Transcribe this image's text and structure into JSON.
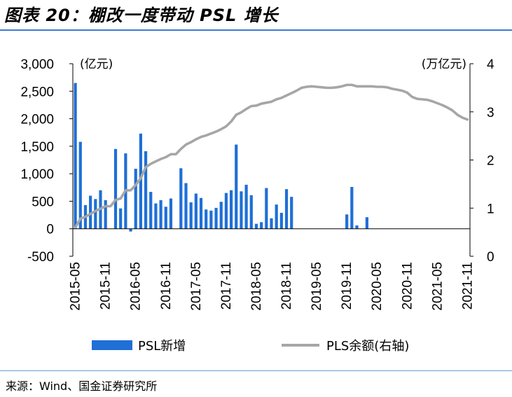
{
  "title": "图表 20：棚改一度带动 PSL 增长",
  "source": "来源：Wind、国金证券研究所",
  "chart_data": {
    "type": "bar+line",
    "categories": [
      "2015-05",
      "2015-06",
      "2015-07",
      "2015-08",
      "2015-09",
      "2015-10",
      "2015-11",
      "2015-12",
      "2016-01",
      "2016-02",
      "2016-03",
      "2016-04",
      "2016-05",
      "2016-06",
      "2016-07",
      "2016-08",
      "2016-09",
      "2016-10",
      "2016-11",
      "2016-12",
      "2017-01",
      "2017-02",
      "2017-03",
      "2017-04",
      "2017-05",
      "2017-06",
      "2017-07",
      "2017-08",
      "2017-09",
      "2017-10",
      "2017-11",
      "2017-12",
      "2018-01",
      "2018-02",
      "2018-03",
      "2018-04",
      "2018-05",
      "2018-06",
      "2018-07",
      "2018-08",
      "2018-09",
      "2018-10",
      "2018-11",
      "2018-12",
      "2019-01",
      "2019-02",
      "2019-03",
      "2019-04",
      "2019-05",
      "2019-06",
      "2019-07",
      "2019-08",
      "2019-09",
      "2019-10",
      "2019-11",
      "2019-12",
      "2020-01",
      "2020-02",
      "2020-03",
      "2020-04",
      "2020-05",
      "2020-06",
      "2020-07",
      "2020-08",
      "2020-09",
      "2020-10",
      "2020-11",
      "2020-12",
      "2021-01",
      "2021-02",
      "2021-03",
      "2021-04",
      "2021-05",
      "2021-06",
      "2021-07",
      "2021-08",
      "2021-09",
      "2021-10",
      "2021-11"
    ],
    "x_tick_labels": [
      "2015-05",
      "2015-11",
      "2016-05",
      "2016-11",
      "2017-05",
      "2017-11",
      "2018-05",
      "2018-11",
      "2019-05",
      "2019-11",
      "2020-05",
      "2020-11",
      "2021-05",
      "2021-11"
    ],
    "left_axis": {
      "unit": "(亿元)",
      "ylim": [
        -500,
        3000
      ],
      "ticks": [
        "3,000",
        "2,500",
        "2,000",
        "1,500",
        "1,000",
        "500",
        "0",
        "-500"
      ]
    },
    "right_axis": {
      "unit": "(万亿元)",
      "ylim": [
        0,
        4
      ],
      "ticks": [
        "4",
        "3",
        "2",
        "1",
        "0"
      ]
    },
    "series": [
      {
        "name": "PSL新增",
        "type": "bar",
        "axis": "left",
        "color": "#1f6fd6",
        "values": [
          2650,
          1580,
          430,
          600,
          540,
          700,
          520,
          0,
          1450,
          370,
          1370,
          -50,
          1090,
          1730,
          1410,
          670,
          460,
          520,
          400,
          550,
          0,
          1100,
          830,
          480,
          640,
          560,
          350,
          330,
          380,
          490,
          650,
          700,
          1530,
          680,
          800,
          610,
          90,
          120,
          740,
          190,
          440,
          290,
          720,
          580,
          0,
          0,
          0,
          0,
          0,
          0,
          0,
          0,
          0,
          0,
          260,
          760,
          60,
          0,
          210,
          0,
          0,
          0,
          0,
          0,
          0,
          0,
          0,
          0,
          0,
          0,
          0,
          0,
          0,
          0,
          0,
          0,
          0,
          0,
          0
        ]
      },
      {
        "name": "PLS余额(右轴)",
        "type": "line",
        "axis": "right",
        "color": "#a6a6a6",
        "values": [
          0.6,
          0.78,
          0.82,
          0.88,
          0.94,
          0.99,
          1.04,
          1.04,
          1.17,
          1.2,
          1.37,
          1.37,
          1.48,
          1.62,
          1.85,
          1.92,
          1.97,
          2.02,
          2.06,
          2.12,
          2.12,
          2.23,
          2.32,
          2.37,
          2.43,
          2.48,
          2.51,
          2.55,
          2.59,
          2.64,
          2.7,
          2.8,
          2.94,
          2.99,
          3.06,
          3.12,
          3.13,
          3.17,
          3.19,
          3.21,
          3.26,
          3.29,
          3.34,
          3.39,
          3.44,
          3.5,
          3.52,
          3.53,
          3.52,
          3.51,
          3.5,
          3.5,
          3.51,
          3.53,
          3.56,
          3.56,
          3.53,
          3.53,
          3.53,
          3.53,
          3.52,
          3.52,
          3.51,
          3.48,
          3.46,
          3.44,
          3.4,
          3.31,
          3.27,
          3.26,
          3.25,
          3.22,
          3.18,
          3.14,
          3.09,
          3.03,
          2.94,
          2.88,
          2.84
        ]
      }
    ],
    "legend": {
      "placement": "bottom",
      "items": [
        "PSL新增",
        "PLS余额(右轴)"
      ]
    }
  }
}
